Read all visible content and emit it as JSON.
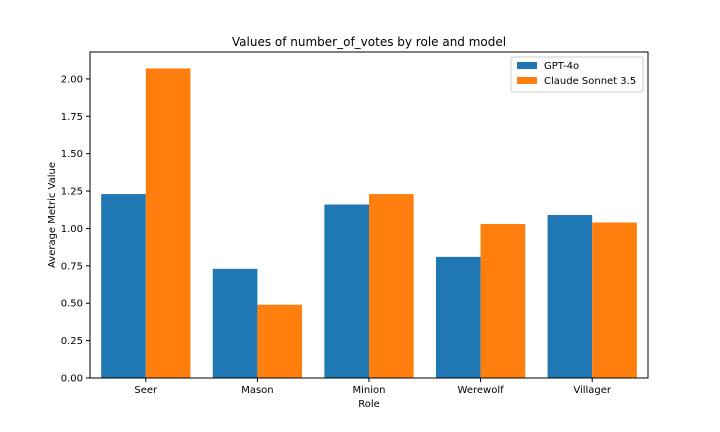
{
  "chart_data": {
    "type": "bar",
    "title": "Values of number_of_votes by role and model",
    "xlabel": "Role",
    "ylabel": "Average Metric Value",
    "categories": [
      "Seer",
      "Mason",
      "Minion",
      "Werewolf",
      "Villager"
    ],
    "series": [
      {
        "name": "GPT-4o",
        "color": "#1f77b4",
        "values": [
          1.23,
          0.73,
          1.16,
          0.81,
          1.09
        ]
      },
      {
        "name": "Claude Sonnet 3.5",
        "color": "#ff7f0e",
        "values": [
          2.07,
          0.49,
          1.23,
          1.03,
          1.04
        ]
      }
    ],
    "ylim": [
      0,
      2.18
    ],
    "yticks": [
      "0.00",
      "0.25",
      "0.50",
      "0.75",
      "1.00",
      "1.25",
      "1.50",
      "1.75",
      "2.00"
    ],
    "legend_position": "top-right",
    "grid": false
  }
}
